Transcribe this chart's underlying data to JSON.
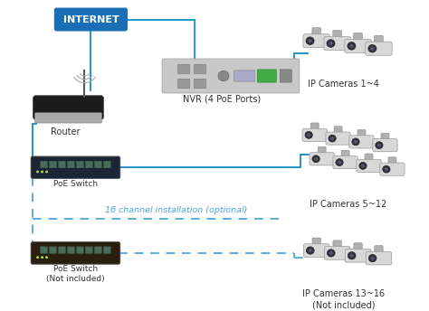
{
  "bg_color": "#ffffff",
  "blue_line_color": "#2196c8",
  "dashed_line_color": "#5aabdc",
  "internet_box_color": "#1a6eb5",
  "internet_text_color": "#ffffff",
  "internet_label": "INTERNET",
  "router_label": "Router",
  "poe_switch1_label": "PoE Switch",
  "poe_switch2_label": "PoE Switch\n(Not included)",
  "nvr_label": "NVR (4 PoE Ports)",
  "cam_group1_label": "IP Cameras 1~4",
  "cam_group2_label": "IP Cameras 5~12",
  "cam_group3_label": "IP Cameras 13~16\n(Not included)",
  "channel_label": "16 channel installation (optional)",
  "text_color": "#333333",
  "optional_text_color": "#4da6e0",
  "router_body_color": "#1c1c1c",
  "router_base_color": "#c8c8c8",
  "switch_color": "#1a2a3a",
  "switch2_color": "#2a1a0a",
  "nvr_body_color": "#d0d0d0",
  "cam_body_color": "#d8d8d8",
  "cam_lens_color": "#333333"
}
